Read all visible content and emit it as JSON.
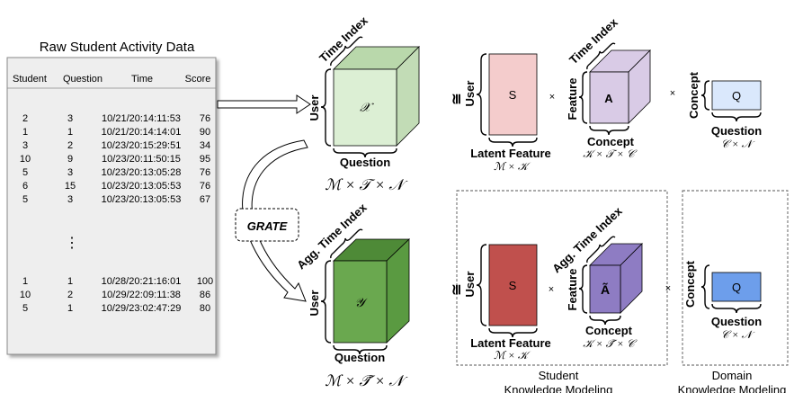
{
  "raw_data": {
    "title": "Raw Student Activity Data",
    "columns": [
      "Student",
      "Question",
      "Time",
      "Score"
    ],
    "rows_top": [
      [
        "2",
        "3",
        "10/21/20:14:11:53",
        "76"
      ],
      [
        "1",
        "1",
        "10/21/20:14:14:01",
        "90"
      ],
      [
        "3",
        "2",
        "10/23/20:15:29:51",
        "34"
      ],
      [
        "10",
        "9",
        "10/23/20:11:50:15",
        "95"
      ],
      [
        "5",
        "3",
        "10/23/20:13:05:28",
        "76"
      ],
      [
        "6",
        "15",
        "10/23/20:13:05:53",
        "76"
      ],
      [
        "5",
        "3",
        "10/23/20:13:05:53",
        "67"
      ]
    ],
    "ellipsis": "⋮",
    "rows_bottom": [
      [
        "1",
        "1",
        "10/28/20:21:16:01",
        "100"
      ],
      [
        "10",
        "2",
        "10/29/22:09:11:38",
        "86"
      ],
      [
        "5",
        "1",
        "10/29/23:02:47:29",
        "80"
      ]
    ]
  },
  "tensor_x": {
    "symbol": "𝒳",
    "user": "User",
    "time": "Time Index",
    "question": "Question",
    "dims": "ℳ × 𝒯 × 𝒩",
    "color_front": "#dcefd4",
    "color_top": "#b9d8ab",
    "color_side": "#c2dcb6"
  },
  "grate": "GRATE",
  "tensor_y": {
    "symbol": "𝒴",
    "user": "User",
    "time": "Agg. Time Index",
    "question": "Question",
    "dims": "ℳ × 𝒯̃ × 𝒩",
    "color_front": "#6aa84f",
    "color_top": "#4e8a37",
    "color_side": "#5a9a41"
  },
  "top_decomp": {
    "approx": "≅",
    "s_label": "S",
    "s_user": "User",
    "s_bottom": "Latent Feature",
    "s_dims": "ℳ × 𝒦",
    "times1": "×",
    "a_label": "A",
    "a_feature": "Feature",
    "a_time": "Time Index",
    "a_concept": "Concept",
    "a_dims": "𝒦 × 𝒯 × 𝒞",
    "times2": "×",
    "q_label": "Q",
    "q_concept": "Concept",
    "q_bottom": "Question",
    "q_dims": "𝒞 × 𝒩",
    "s_color": "#f4cccc",
    "a_color": "#d9cbe6",
    "q_color": "#dae8fc"
  },
  "bottom_decomp": {
    "approx": "≅",
    "s_label": "S",
    "s_user": "User",
    "s_bottom": "Latent Feature",
    "s_dims": "ℳ × 𝒦",
    "times1": "×",
    "a_label": "Ã",
    "a_feature": "Feature",
    "a_time": "Agg. Time Index",
    "a_concept": "Concept",
    "a_dims": "𝒦 × 𝒯̃ × 𝒞",
    "times2": "×",
    "q_label": "Q",
    "q_concept": "Concept",
    "q_bottom": "Question",
    "q_dims": "𝒞 × 𝒩",
    "s_color": "#c0504d",
    "a_color": "#8e7cc3",
    "q_color": "#6d9eeb",
    "student_label_1": "Student",
    "student_label_2": "Knowledge Modeling",
    "domain_label_1": "Domain",
    "domain_label_2": "Knowledge Modeling"
  }
}
